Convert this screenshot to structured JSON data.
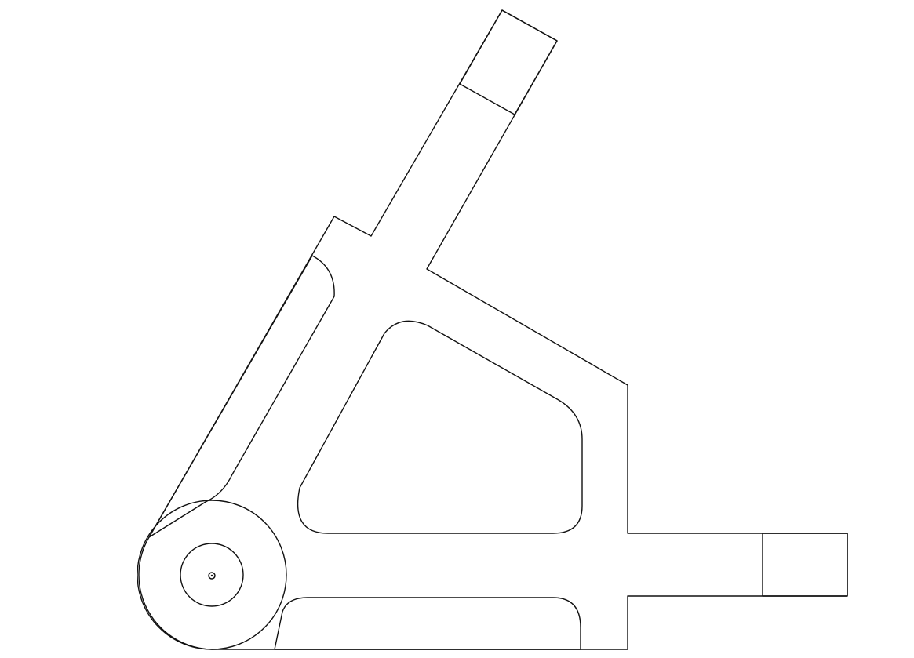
{
  "scene": {
    "part_color": "#7fa5bf",
    "pocket_color": "#7ba2bc",
    "edge_color": "#111111",
    "background_color": "#ffffff",
    "highlight_color": "#b8dcf3",
    "hole_color": "#ffffff",
    "view": "top"
  }
}
